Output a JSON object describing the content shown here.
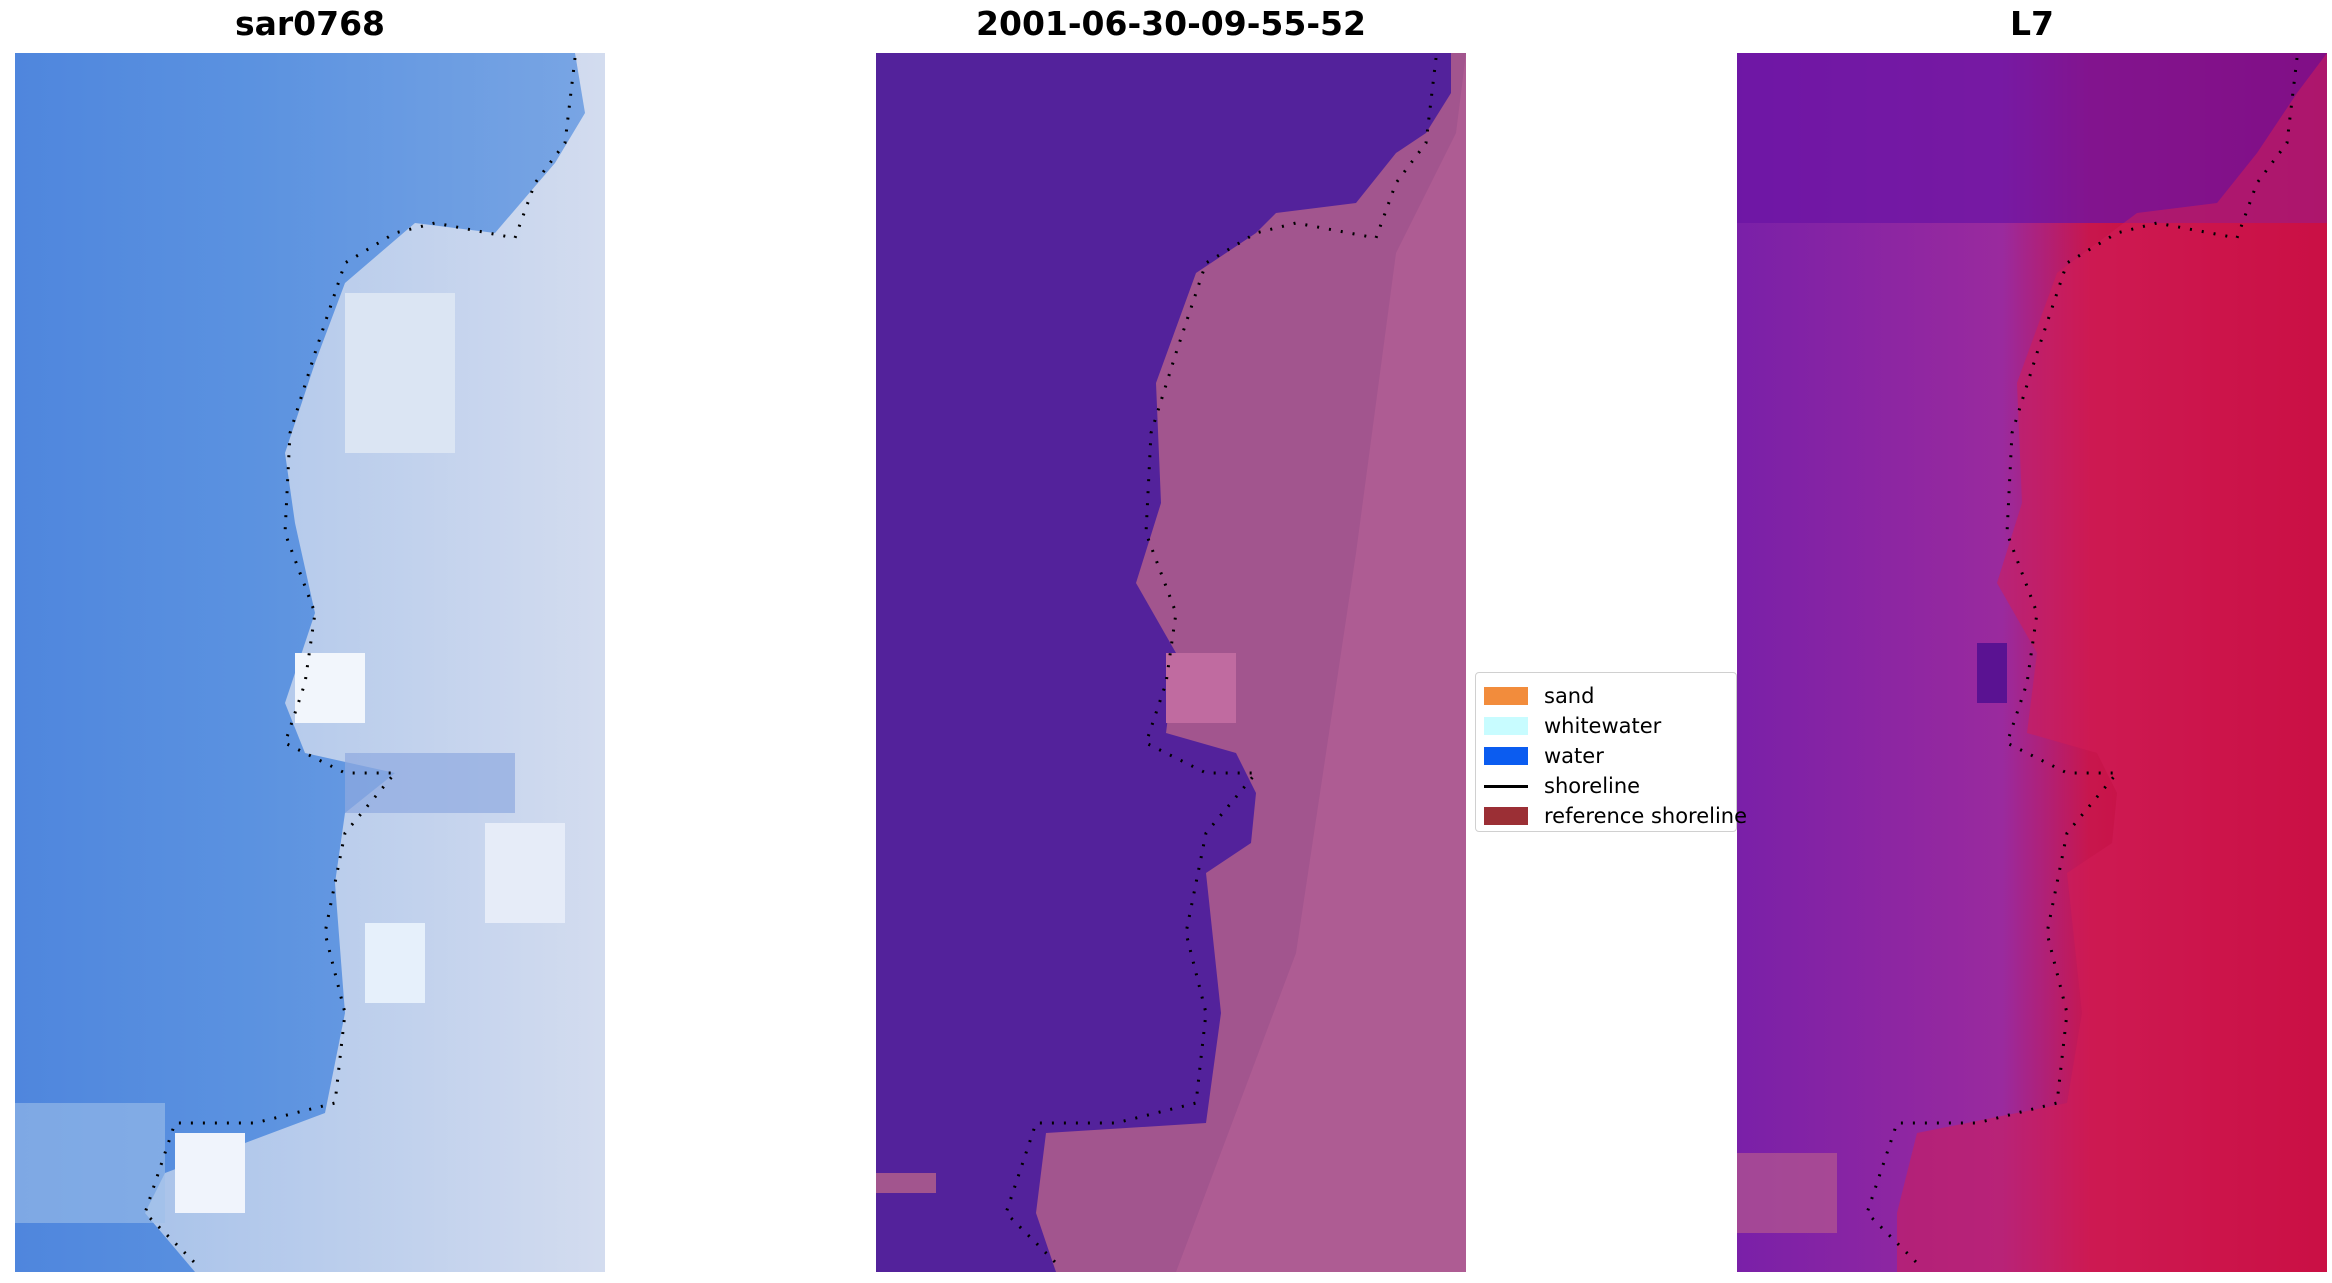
{
  "panels": [
    {
      "title": "sar0768",
      "kind": "rgb"
    },
    {
      "title": "2001-06-30-09-55-52",
      "kind": "classified"
    },
    {
      "title": "L7",
      "kind": "mndwi"
    }
  ],
  "legend": {
    "items": [
      {
        "label": "sand",
        "color": "#f28c3c",
        "kind": "swatch"
      },
      {
        "label": "whitewater",
        "color": "#c8fcff",
        "kind": "swatch"
      },
      {
        "label": "water",
        "color": "#0b5cf0",
        "kind": "swatch"
      },
      {
        "label": "shoreline",
        "color": "#000000",
        "kind": "line"
      },
      {
        "label": "reference shoreline",
        "color": "#9b2f35",
        "kind": "swatch"
      }
    ]
  },
  "colors": {
    "water_rgb": "#5b8ee0",
    "land_rgb": "#c4d4ec",
    "water_class": "#53229b",
    "land_class": "#b05c96",
    "water_index_low": "#6a16a0",
    "water_index_high": "#c0002e",
    "shoreline": "#000000"
  }
}
